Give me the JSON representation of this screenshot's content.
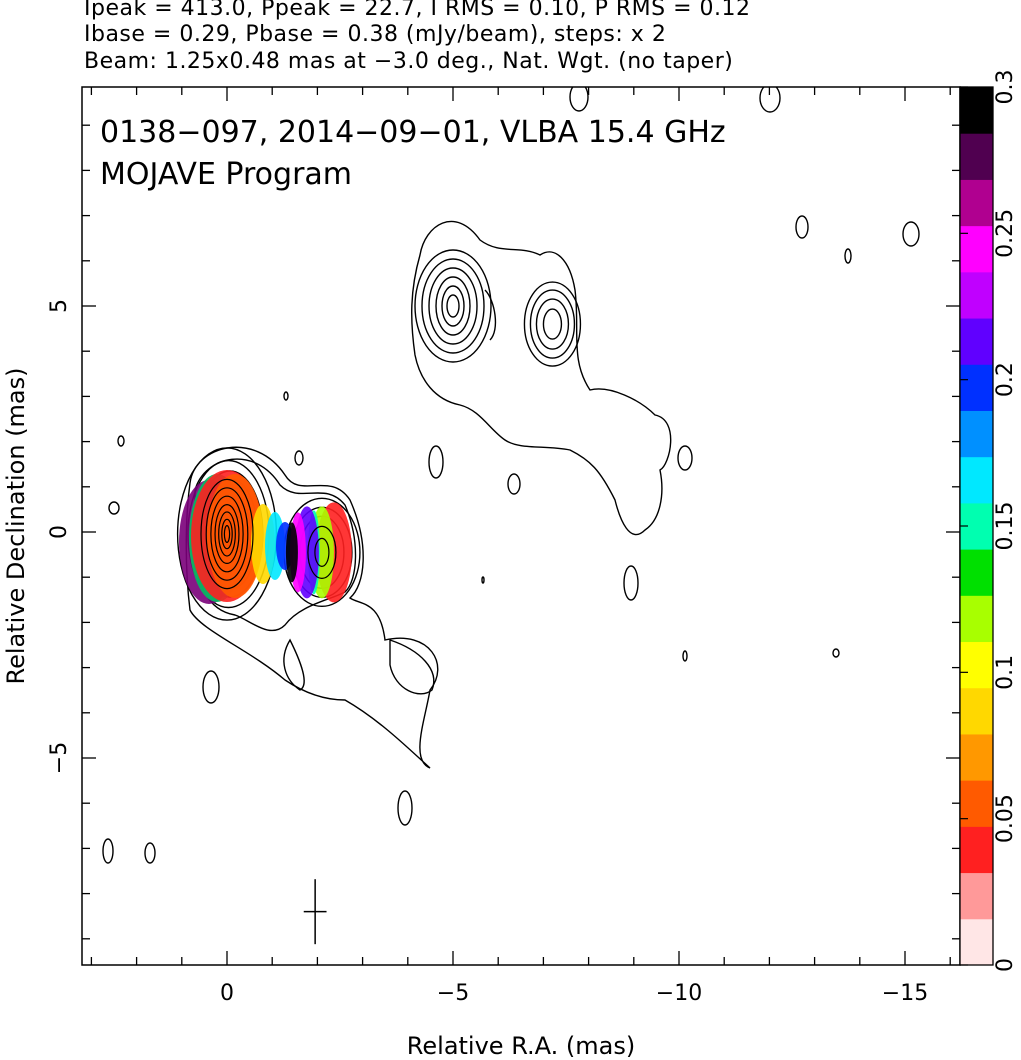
{
  "header": {
    "line1": "Ipeak = 413.0, Ppeak = 22.7, I RMS = 0.10, P RMS = 0.12",
    "line2": "Ibase = 0.29, Pbase = 0.38 (mJy/beam), steps: x 2",
    "line3": "Beam: 1.25x0.48 mas at −3.0 deg., Nat. Wgt. (no taper)"
  },
  "plot": {
    "title_line1": "0138−097, 2014−09−01, VLBA 15.4 GHz",
    "title_line2": "MOJAVE Program"
  },
  "chart_data": {
    "type": "contour",
    "source": "0138−097",
    "date": "2014−09−01",
    "frequency": "15.4 GHz",
    "xlabel": "Relative R.A. (mas)",
    "ylabel": "Relative Declination (mas)",
    "xlim": [
      3.2,
      -16.3
    ],
    "ylim": [
      -9.5,
      9.9
    ],
    "x_ticks": [
      0,
      -5,
      -10,
      -15
    ],
    "x_tick_labels": [
      "0",
      "−5",
      "−10",
      "−15"
    ],
    "y_ticks": [
      5,
      0,
      -5
    ],
    "y_tick_labels": [
      "5",
      "0",
      "−5"
    ],
    "contour_steps": "x 2",
    "contour_base_mJy": 0.29,
    "peak_intensity_mJy": 413.0,
    "peak_polarization_mJy": 22.7,
    "components": [
      {
        "x": 0.0,
        "y": 0.0,
        "levels": 10
      },
      {
        "x": -2.1,
        "y": -0.45,
        "levels": 5
      },
      {
        "x": -5.0,
        "y": 5.0,
        "levels": 6
      },
      {
        "x": -7.2,
        "y": 4.6,
        "levels": 4
      }
    ],
    "beam": {
      "major_mas": 1.25,
      "minor_mas": 0.48,
      "pa_deg": -3.0,
      "x": -1.95,
      "y": -8.4
    },
    "colorbar": {
      "label_values": [
        0,
        0.05,
        0.1,
        0.15,
        0.2,
        0.25,
        0.3
      ],
      "labels": [
        "0",
        "0.05",
        "0.1",
        "0.15",
        "0.2",
        "0.25",
        "0.3"
      ],
      "colors": [
        "#ffe6e6",
        "#ff9999",
        "#ff2020",
        "#ff5a00",
        "#ff9800",
        "#ffd800",
        "#ffff00",
        "#a8ff00",
        "#00e000",
        "#00ffb0",
        "#00e8ff",
        "#0090ff",
        "#0030ff",
        "#6000ff",
        "#c000ff",
        "#ff00ff",
        "#b00090",
        "#500050",
        "#000000"
      ]
    }
  }
}
